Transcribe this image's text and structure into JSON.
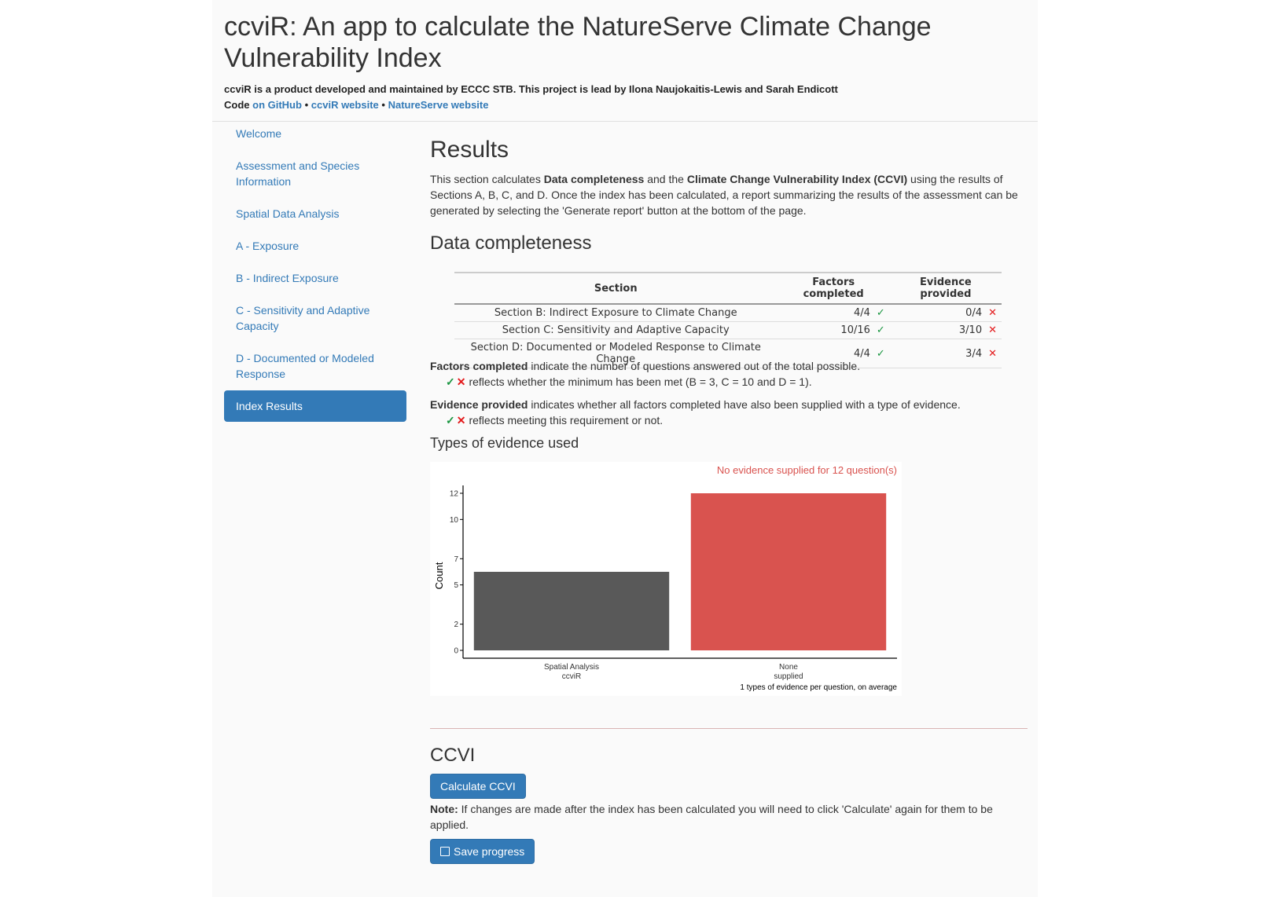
{
  "header": {
    "title": "ccviR: An app to calculate the NatureServe Climate Change Vulnerability Index",
    "subtitle": "ccviR is a product developed and maintained by ECCC STB. This project is lead by Ilona Naujokaitis-Lewis and Sarah Endicott",
    "code_label": "Code",
    "link_github": "on GitHub",
    "sep": "•",
    "link_website": "ccviR website",
    "link_natureserve": "NatureServe website"
  },
  "sidebar": {
    "items": [
      {
        "label": "Welcome"
      },
      {
        "label": "Assessment and Species Information"
      },
      {
        "label": "Spatial Data Analysis"
      },
      {
        "label": "A - Exposure"
      },
      {
        "label": "B - Indirect Exposure"
      },
      {
        "label": "C - Sensitivity and Adaptive Capacity"
      },
      {
        "label": "D - Documented or Modeled Response"
      },
      {
        "label": "Index Results"
      }
    ]
  },
  "main": {
    "heading": "Results",
    "intro_a": "This section calculates ",
    "intro_b": "Data completeness",
    "intro_c": " and the ",
    "intro_d": "Climate Change Vulnerability Index (CCVI)",
    "intro_e": " using the results of Sections A, B, C, and D. Once the index has been calculated, a report summarizing the results of the assessment can be generated by selecting the 'Generate report' button at the bottom of the page.",
    "completeness_heading": "Data completeness",
    "table": {
      "headers": [
        "Section",
        "Factors completed",
        "Evidence provided"
      ],
      "rows": [
        {
          "section": "Section B: Indirect Exposure to Climate Change",
          "factors": "4/4",
          "evidence": "0/4"
        },
        {
          "section": "Section C: Sensitivity and Adaptive Capacity",
          "factors": "10/16",
          "evidence": "3/10"
        },
        {
          "section": "Section D: Documented or Modeled Response to Climate Change",
          "factors": "4/4",
          "evidence": "3/4"
        }
      ]
    },
    "note1_bold": "Factors completed",
    "note1_text": " indicate the number of questions answered out of the total possible.",
    "note1_sub": "reflects whether the minimum has been met (B = 3, C = 10 and D = 1).",
    "note2_bold": "Evidence provided",
    "note2_text": " indicates whether all factors completed have also been supplied with a type of evidence.",
    "note2_sub": "reflects meeting this requirement or not.",
    "evidence_heading": "Types of evidence used",
    "ccvi_heading": "CCVI",
    "calc_button": "Calculate CCVI",
    "note3_bold": "Note:",
    "note3_text": " If changes are made after the index has been calculated you will need to click 'Calculate' again for them to be applied.",
    "save_button": "Save progress"
  },
  "chart_data": {
    "type": "bar",
    "categories": [
      "Spatial Analysis\nccviR",
      "None\nsupplied"
    ],
    "values": [
      6,
      12
    ],
    "colors": [
      "#595959",
      "#d9534f"
    ],
    "ylabel": "Count",
    "yticks": [
      0,
      2,
      5,
      7,
      10,
      12
    ],
    "ylim": [
      0,
      12.6
    ],
    "annotation_top": "No evidence supplied for 12 question(s)",
    "annotation_bottom": "1 types of evidence per question, on average",
    "grid": false
  }
}
